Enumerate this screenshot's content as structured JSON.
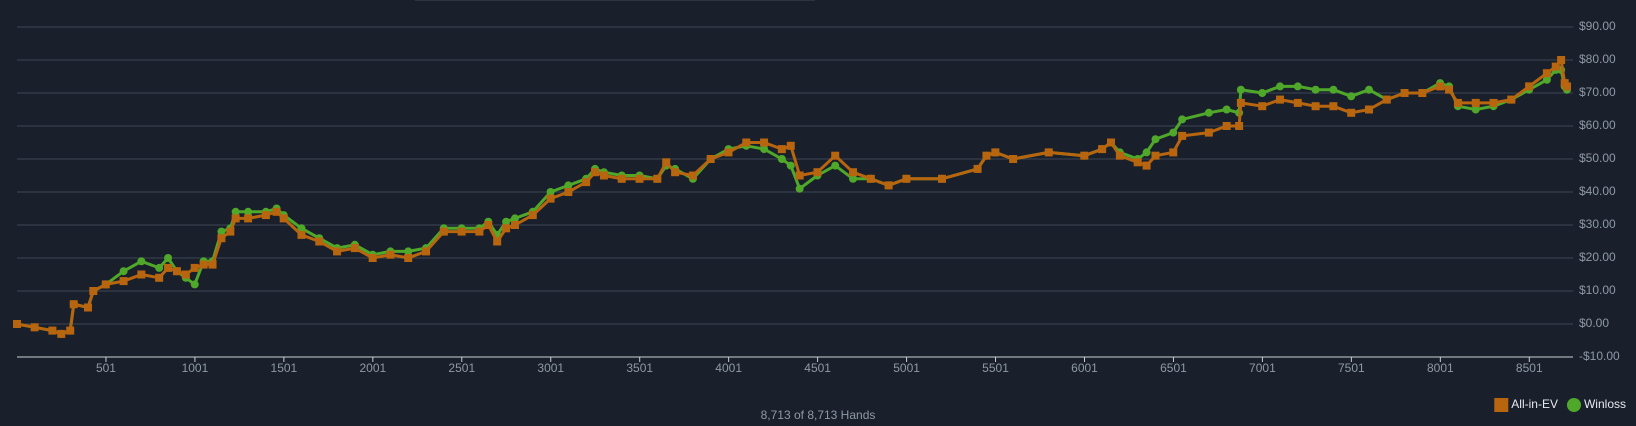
{
  "chart_data": {
    "type": "line",
    "x": [
      1,
      100,
      200,
      250,
      300,
      320,
      400,
      430,
      500,
      600,
      700,
      800,
      850,
      900,
      950,
      1000,
      1050,
      1100,
      1150,
      1200,
      1230,
      1300,
      1400,
      1460,
      1500,
      1600,
      1700,
      1800,
      1900,
      2000,
      2100,
      2200,
      2300,
      2400,
      2500,
      2600,
      2650,
      2700,
      2750,
      2800,
      2900,
      3000,
      3100,
      3200,
      3250,
      3300,
      3400,
      3500,
      3600,
      3650,
      3700,
      3800,
      3900,
      4000,
      4100,
      4200,
      4300,
      4350,
      4400,
      4500,
      4600,
      4700,
      4800,
      4900,
      5000,
      5200,
      5400,
      5450,
      5500,
      5600,
      5800,
      6000,
      6100,
      6150,
      6200,
      6300,
      6350,
      6400,
      6500,
      6550,
      6700,
      6800,
      6870,
      6880,
      7000,
      7100,
      7200,
      7300,
      7400,
      7500,
      7600,
      7700,
      7800,
      7900,
      8000,
      8050,
      8100,
      8200,
      8300,
      8400,
      8500,
      8600,
      8650,
      8680,
      8700,
      8713
    ],
    "series": [
      {
        "name": "All-in-EV",
        "color": "#b8650f",
        "marker": "square",
        "values": [
          0,
          -1,
          -2,
          -3,
          -2,
          6,
          5,
          10,
          12,
          13,
          15,
          14,
          17,
          16,
          15,
          17,
          18,
          18,
          26,
          28,
          32,
          32,
          33,
          34,
          32,
          27,
          25,
          22,
          23,
          20,
          21,
          20,
          22,
          28,
          28,
          28,
          30,
          25,
          29,
          30,
          33,
          38,
          40,
          43,
          46,
          45,
          44,
          44,
          44,
          49,
          46,
          45,
          50,
          52,
          55,
          55,
          53,
          54,
          45,
          46,
          51,
          46,
          44,
          42,
          44,
          44,
          47,
          51,
          52,
          50,
          52,
          51,
          53,
          55,
          51,
          49,
          48,
          51,
          52,
          57,
          58,
          60,
          60,
          67,
          66,
          68,
          67,
          66,
          66,
          64,
          65,
          68,
          70,
          70,
          72,
          71,
          67,
          67,
          67,
          68,
          72,
          76,
          78,
          80,
          73,
          72
        ]
      },
      {
        "name": "Winloss",
        "color": "#4fa82a",
        "marker": "circle",
        "values": [
          0,
          -1,
          -2,
          -3,
          -2,
          6,
          5,
          10,
          12,
          16,
          19,
          17,
          20,
          16,
          14,
          12,
          19,
          19,
          28,
          29,
          34,
          34,
          34,
          35,
          33,
          29,
          26,
          23,
          24,
          21,
          22,
          22,
          23,
          29,
          29,
          29,
          31,
          27,
          31,
          32,
          34,
          40,
          42,
          44,
          47,
          46,
          45,
          45,
          44,
          48,
          47,
          44,
          50,
          53,
          54,
          53,
          50,
          48,
          41,
          45,
          48,
          44,
          44,
          42,
          44,
          44,
          47,
          51,
          52,
          50,
          52,
          51,
          53,
          55,
          52,
          50,
          52,
          56,
          58,
          62,
          64,
          65,
          64,
          71,
          70,
          72,
          72,
          71,
          71,
          69,
          71,
          68,
          70,
          70,
          73,
          72,
          66,
          65,
          66,
          68,
          71,
          74,
          77,
          77,
          72,
          71
        ]
      }
    ],
    "xlim": [
      1,
      8713
    ],
    "xticks": [
      501,
      1001,
      1501,
      2001,
      2501,
      3001,
      3501,
      4001,
      4501,
      5001,
      5501,
      6001,
      6501,
      7001,
      7501,
      8001,
      8501
    ],
    "ylim": [
      -10,
      90
    ],
    "yticks": [
      {
        "value": -10,
        "label": "-$10.00"
      },
      {
        "value": 0,
        "label": "$0.00"
      },
      {
        "value": 10,
        "label": "$10.00"
      },
      {
        "value": 20,
        "label": "$20.00"
      },
      {
        "value": 30,
        "label": "$30.00"
      },
      {
        "value": 40,
        "label": "$40.00"
      },
      {
        "value": 50,
        "label": "$50.00"
      },
      {
        "value": 60,
        "label": "$60.00"
      },
      {
        "value": 70,
        "label": "$70.00"
      },
      {
        "value": 80,
        "label": "$80.00"
      },
      {
        "value": 90,
        "label": "$90.00"
      }
    ],
    "grid": true,
    "legend": "bottom-right",
    "footer": "8,713 of 8,713 Hands"
  }
}
